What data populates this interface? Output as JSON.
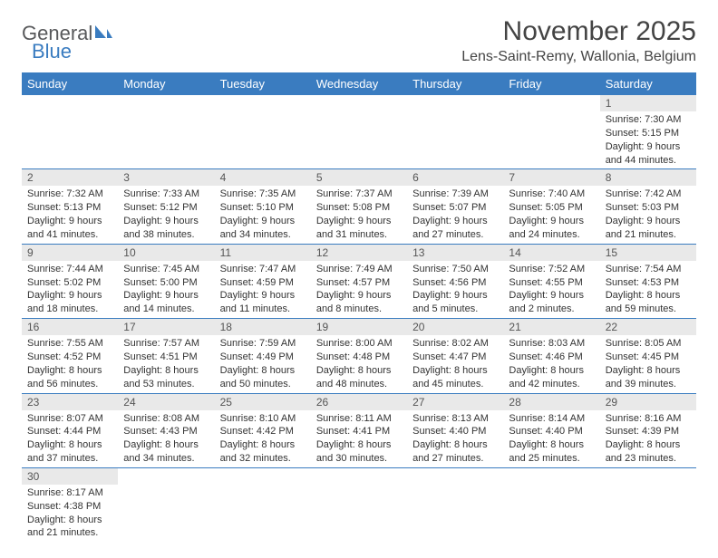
{
  "logo": {
    "part1": "General",
    "part2": "Blue"
  },
  "title": "November 2025",
  "location": "Lens-Saint-Remy, Wallonia, Belgium",
  "colors": {
    "header_bg": "#3a7cc0",
    "header_text": "#ffffff",
    "daynum_bg": "#e9e9e9",
    "border": "#3a7cc0",
    "logo_gray": "#58595b",
    "logo_blue": "#3a7cc0"
  },
  "weekdays": [
    "Sunday",
    "Monday",
    "Tuesday",
    "Wednesday",
    "Thursday",
    "Friday",
    "Saturday"
  ],
  "weeks": [
    [
      null,
      null,
      null,
      null,
      null,
      null,
      {
        "n": "1",
        "sr": "Sunrise: 7:30 AM",
        "ss": "Sunset: 5:15 PM",
        "d1": "Daylight: 9 hours",
        "d2": "and 44 minutes."
      }
    ],
    [
      {
        "n": "2",
        "sr": "Sunrise: 7:32 AM",
        "ss": "Sunset: 5:13 PM",
        "d1": "Daylight: 9 hours",
        "d2": "and 41 minutes."
      },
      {
        "n": "3",
        "sr": "Sunrise: 7:33 AM",
        "ss": "Sunset: 5:12 PM",
        "d1": "Daylight: 9 hours",
        "d2": "and 38 minutes."
      },
      {
        "n": "4",
        "sr": "Sunrise: 7:35 AM",
        "ss": "Sunset: 5:10 PM",
        "d1": "Daylight: 9 hours",
        "d2": "and 34 minutes."
      },
      {
        "n": "5",
        "sr": "Sunrise: 7:37 AM",
        "ss": "Sunset: 5:08 PM",
        "d1": "Daylight: 9 hours",
        "d2": "and 31 minutes."
      },
      {
        "n": "6",
        "sr": "Sunrise: 7:39 AM",
        "ss": "Sunset: 5:07 PM",
        "d1": "Daylight: 9 hours",
        "d2": "and 27 minutes."
      },
      {
        "n": "7",
        "sr": "Sunrise: 7:40 AM",
        "ss": "Sunset: 5:05 PM",
        "d1": "Daylight: 9 hours",
        "d2": "and 24 minutes."
      },
      {
        "n": "8",
        "sr": "Sunrise: 7:42 AM",
        "ss": "Sunset: 5:03 PM",
        "d1": "Daylight: 9 hours",
        "d2": "and 21 minutes."
      }
    ],
    [
      {
        "n": "9",
        "sr": "Sunrise: 7:44 AM",
        "ss": "Sunset: 5:02 PM",
        "d1": "Daylight: 9 hours",
        "d2": "and 18 minutes."
      },
      {
        "n": "10",
        "sr": "Sunrise: 7:45 AM",
        "ss": "Sunset: 5:00 PM",
        "d1": "Daylight: 9 hours",
        "d2": "and 14 minutes."
      },
      {
        "n": "11",
        "sr": "Sunrise: 7:47 AM",
        "ss": "Sunset: 4:59 PM",
        "d1": "Daylight: 9 hours",
        "d2": "and 11 minutes."
      },
      {
        "n": "12",
        "sr": "Sunrise: 7:49 AM",
        "ss": "Sunset: 4:57 PM",
        "d1": "Daylight: 9 hours",
        "d2": "and 8 minutes."
      },
      {
        "n": "13",
        "sr": "Sunrise: 7:50 AM",
        "ss": "Sunset: 4:56 PM",
        "d1": "Daylight: 9 hours",
        "d2": "and 5 minutes."
      },
      {
        "n": "14",
        "sr": "Sunrise: 7:52 AM",
        "ss": "Sunset: 4:55 PM",
        "d1": "Daylight: 9 hours",
        "d2": "and 2 minutes."
      },
      {
        "n": "15",
        "sr": "Sunrise: 7:54 AM",
        "ss": "Sunset: 4:53 PM",
        "d1": "Daylight: 8 hours",
        "d2": "and 59 minutes."
      }
    ],
    [
      {
        "n": "16",
        "sr": "Sunrise: 7:55 AM",
        "ss": "Sunset: 4:52 PM",
        "d1": "Daylight: 8 hours",
        "d2": "and 56 minutes."
      },
      {
        "n": "17",
        "sr": "Sunrise: 7:57 AM",
        "ss": "Sunset: 4:51 PM",
        "d1": "Daylight: 8 hours",
        "d2": "and 53 minutes."
      },
      {
        "n": "18",
        "sr": "Sunrise: 7:59 AM",
        "ss": "Sunset: 4:49 PM",
        "d1": "Daylight: 8 hours",
        "d2": "and 50 minutes."
      },
      {
        "n": "19",
        "sr": "Sunrise: 8:00 AM",
        "ss": "Sunset: 4:48 PM",
        "d1": "Daylight: 8 hours",
        "d2": "and 48 minutes."
      },
      {
        "n": "20",
        "sr": "Sunrise: 8:02 AM",
        "ss": "Sunset: 4:47 PM",
        "d1": "Daylight: 8 hours",
        "d2": "and 45 minutes."
      },
      {
        "n": "21",
        "sr": "Sunrise: 8:03 AM",
        "ss": "Sunset: 4:46 PM",
        "d1": "Daylight: 8 hours",
        "d2": "and 42 minutes."
      },
      {
        "n": "22",
        "sr": "Sunrise: 8:05 AM",
        "ss": "Sunset: 4:45 PM",
        "d1": "Daylight: 8 hours",
        "d2": "and 39 minutes."
      }
    ],
    [
      {
        "n": "23",
        "sr": "Sunrise: 8:07 AM",
        "ss": "Sunset: 4:44 PM",
        "d1": "Daylight: 8 hours",
        "d2": "and 37 minutes."
      },
      {
        "n": "24",
        "sr": "Sunrise: 8:08 AM",
        "ss": "Sunset: 4:43 PM",
        "d1": "Daylight: 8 hours",
        "d2": "and 34 minutes."
      },
      {
        "n": "25",
        "sr": "Sunrise: 8:10 AM",
        "ss": "Sunset: 4:42 PM",
        "d1": "Daylight: 8 hours",
        "d2": "and 32 minutes."
      },
      {
        "n": "26",
        "sr": "Sunrise: 8:11 AM",
        "ss": "Sunset: 4:41 PM",
        "d1": "Daylight: 8 hours",
        "d2": "and 30 minutes."
      },
      {
        "n": "27",
        "sr": "Sunrise: 8:13 AM",
        "ss": "Sunset: 4:40 PM",
        "d1": "Daylight: 8 hours",
        "d2": "and 27 minutes."
      },
      {
        "n": "28",
        "sr": "Sunrise: 8:14 AM",
        "ss": "Sunset: 4:40 PM",
        "d1": "Daylight: 8 hours",
        "d2": "and 25 minutes."
      },
      {
        "n": "29",
        "sr": "Sunrise: 8:16 AM",
        "ss": "Sunset: 4:39 PM",
        "d1": "Daylight: 8 hours",
        "d2": "and 23 minutes."
      }
    ],
    [
      {
        "n": "30",
        "sr": "Sunrise: 8:17 AM",
        "ss": "Sunset: 4:38 PM",
        "d1": "Daylight: 8 hours",
        "d2": "and 21 minutes."
      },
      null,
      null,
      null,
      null,
      null,
      null
    ]
  ]
}
